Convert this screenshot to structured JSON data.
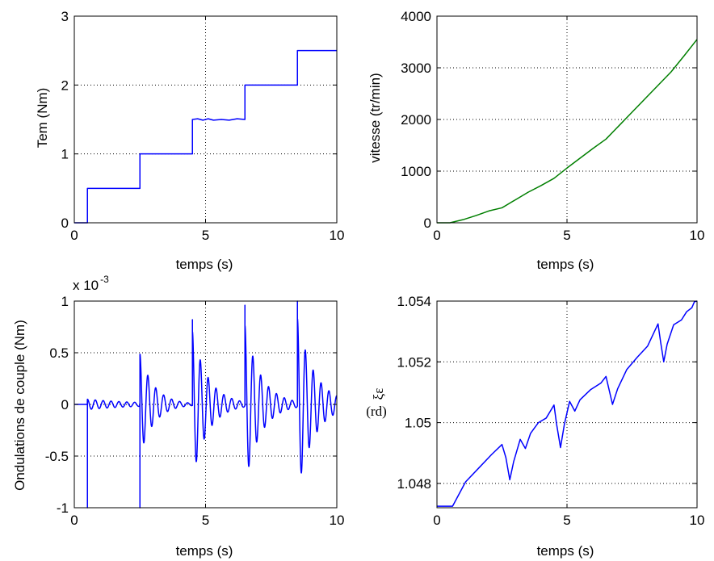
{
  "chart_data": [
    {
      "id": "torque",
      "type": "line",
      "xlabel": "temps (s)",
      "ylabel": "Tem  (Nm)",
      "xlim": [
        0,
        10
      ],
      "ylim": [
        0,
        3
      ],
      "xticks": [
        0,
        5,
        10
      ],
      "yticks": [
        0,
        1,
        2,
        3
      ],
      "xtick_labels": [
        "0",
        "5",
        "10"
      ],
      "ytick_labels": [
        "0",
        "1",
        "2",
        "3"
      ],
      "grid": true,
      "series": [
        {
          "color": "#0000ff",
          "x": [
            0,
            0.5,
            0.5,
            2.5,
            2.5,
            4.5,
            4.5,
            4.7,
            4.9,
            5.1,
            5.3,
            5.6,
            5.9,
            6.2,
            6.5,
            6.5,
            8.5,
            8.5,
            10
          ],
          "y": [
            0,
            0,
            0.5,
            0.5,
            1.0,
            1.0,
            1.5,
            1.51,
            1.49,
            1.51,
            1.49,
            1.5,
            1.49,
            1.51,
            1.5,
            2.0,
            2.0,
            2.5,
            2.5
          ]
        }
      ]
    },
    {
      "id": "speed",
      "type": "line",
      "xlabel": "temps (s)",
      "ylabel": "vitesse  (tr/min)",
      "xlim": [
        0,
        10
      ],
      "ylim": [
        0,
        4000
      ],
      "xticks": [
        0,
        5,
        10
      ],
      "yticks": [
        0,
        1000,
        2000,
        3000,
        4000
      ],
      "xtick_labels": [
        "0",
        "5",
        "10"
      ],
      "ytick_labels": [
        "0",
        "1000",
        "2000",
        "3000",
        "4000"
      ],
      "grid": true,
      "series": [
        {
          "color": "#007f00",
          "x": [
            0,
            0.5,
            1,
            1.5,
            2,
            2.5,
            3,
            3.5,
            4,
            4.5,
            5,
            5.5,
            6,
            6.5,
            7,
            7.5,
            8,
            8.5,
            9,
            9.5,
            10
          ],
          "y": [
            0,
            0,
            60,
            140,
            230,
            290,
            440,
            590,
            720,
            860,
            1060,
            1250,
            1440,
            1620,
            1880,
            2140,
            2400,
            2660,
            2920,
            3230,
            3550
          ]
        }
      ]
    },
    {
      "id": "ripple",
      "type": "line",
      "xlabel": "temps (s)",
      "ylabel": "Ondulations de couple  (Nm)",
      "multiplier": "x 10",
      "multiplier_exp": "-3",
      "xlim": [
        0,
        10
      ],
      "ylim": [
        -1,
        1
      ],
      "xticks": [
        0,
        5,
        10
      ],
      "yticks": [
        -1,
        -0.5,
        0,
        0.5,
        1
      ],
      "xtick_labels": [
        "0",
        "5",
        "10"
      ],
      "ytick_labels": [
        "-1",
        "-0.5",
        "0",
        "0.5",
        "1"
      ],
      "grid": true,
      "steps": [
        {
          "t": 0.5,
          "peak": -1.0,
          "amp": 0.05,
          "decay": 2.0
        },
        {
          "t": 2.5,
          "peak": -1.0,
          "post": 0.5,
          "amp": 0.5,
          "decay": 0.55
        },
        {
          "t": 4.5,
          "peak": 0.82,
          "amp": 0.72,
          "decay": 0.6
        },
        {
          "t": 6.5,
          "peak": 0.96,
          "amp": 0.78,
          "decay": 0.6
        },
        {
          "t": 8.5,
          "peak": 1.0,
          "amp": 0.85,
          "decay": 0.65
        }
      ],
      "ripple_period": 0.3,
      "series_color": "#0000ff"
    },
    {
      "id": "angle",
      "type": "line",
      "xlabel": "temps (s)",
      "ylabel": "(rd)",
      "ylabel_symbol": "ξε",
      "xlim": [
        0,
        10
      ],
      "ylim": [
        1.0472,
        1.054
      ],
      "xticks": [
        0,
        5,
        10
      ],
      "yticks": [
        1.048,
        1.05,
        1.052,
        1.054
      ],
      "xtick_labels": [
        "0",
        "5",
        "10"
      ],
      "ytick_labels": [
        "1.048",
        "1.05",
        "1.052",
        "1.054"
      ],
      "grid": true,
      "series": [
        {
          "color": "#0000ff",
          "x": [
            0,
            0.6,
            1.1,
            1.6,
            2.1,
            2.5,
            2.65,
            2.8,
            2.95,
            3.2,
            3.4,
            3.6,
            3.9,
            4.2,
            4.5,
            4.6,
            4.75,
            4.9,
            5.1,
            5.3,
            5.5,
            5.9,
            6.3,
            6.5,
            6.6,
            6.75,
            6.95,
            7.3,
            7.7,
            8.1,
            8.5,
            8.6,
            8.72,
            8.85,
            9.1,
            9.4,
            9.6,
            9.8,
            9.9,
            10
          ],
          "y": [
            1.04725,
            1.04725,
            1.04805,
            1.0485,
            1.04895,
            1.04928,
            1.04885,
            1.04812,
            1.04872,
            1.04945,
            1.04915,
            1.04965,
            1.05,
            1.05015,
            1.05058,
            1.04995,
            1.04918,
            1.04995,
            1.0507,
            1.05038,
            1.05075,
            1.05108,
            1.0513,
            1.05152,
            1.05115,
            1.0506,
            1.05112,
            1.05175,
            1.05215,
            1.05252,
            1.05325,
            1.05265,
            1.052,
            1.05258,
            1.05322,
            1.05338,
            1.05365,
            1.05378,
            1.05398,
            1.054
          ]
        }
      ]
    }
  ]
}
